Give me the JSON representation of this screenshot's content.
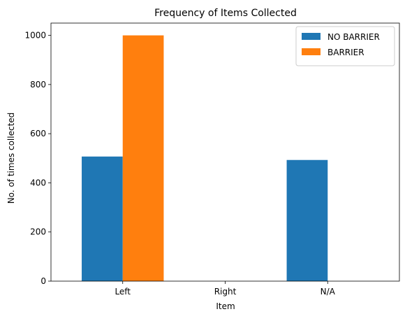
{
  "chart_data": {
    "type": "bar",
    "title": "Frequency of Items Collected",
    "xlabel": "Item",
    "ylabel": "No. of times collected",
    "categories": [
      "Left",
      "Right",
      "N/A"
    ],
    "series": [
      {
        "name": "NO BARRIER",
        "color": "#1f77b4",
        "values": [
          507,
          0,
          493
        ]
      },
      {
        "name": "BARRIER",
        "color": "#ff7f0e",
        "values": [
          1000,
          0,
          0
        ]
      }
    ],
    "ylim": [
      0,
      1050
    ],
    "yticks": [
      0,
      200,
      400,
      600,
      800,
      1000
    ],
    "grid": false,
    "legend_position": "top-right"
  }
}
